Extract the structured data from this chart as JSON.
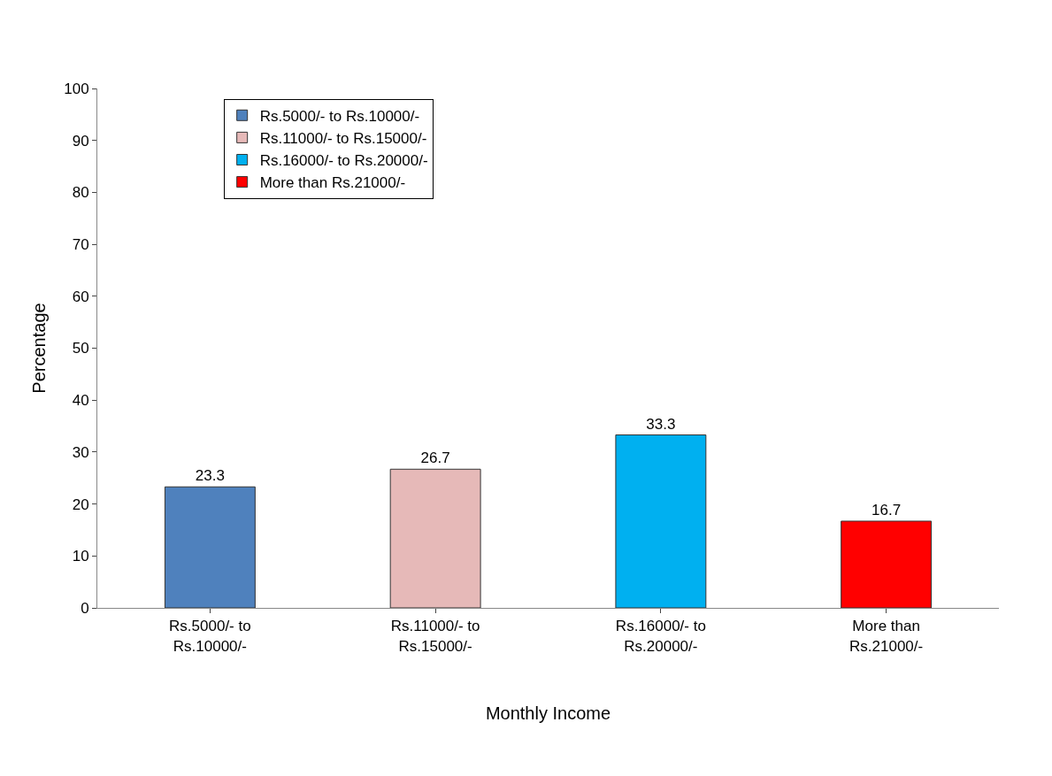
{
  "chart_data": {
    "type": "bar",
    "categories": [
      "Rs.5000/- to Rs.10000/-",
      "Rs.11000/- to Rs.15000/-",
      "Rs.16000/- to Rs.20000/-",
      "More than Rs.21000/-"
    ],
    "series": [
      {
        "name": "Rs.5000/- to Rs.10000/-",
        "color": "#4f81bd",
        "values": [
          23.3,
          null,
          null,
          null
        ]
      },
      {
        "name": "Rs.11000/- to Rs.15000/-",
        "color": "#e6b9b8",
        "values": [
          null,
          26.7,
          null,
          null
        ]
      },
      {
        "name": "Rs.16000/- to Rs.20000/-",
        "color": "#00b0f0",
        "values": [
          null,
          null,
          33.3,
          null
        ]
      },
      {
        "name": "More than Rs.21000/-",
        "color": "#ff0000",
        "values": [
          null,
          null,
          null,
          16.7
        ]
      }
    ],
    "xlabel": "Monthly Income",
    "ylabel": "Percentage",
    "ylim": [
      0,
      100
    ],
    "yticks": [
      0,
      10,
      20,
      30,
      40,
      50,
      60,
      70,
      80,
      90,
      100
    ],
    "data_labels": true,
    "legend": "top left"
  }
}
